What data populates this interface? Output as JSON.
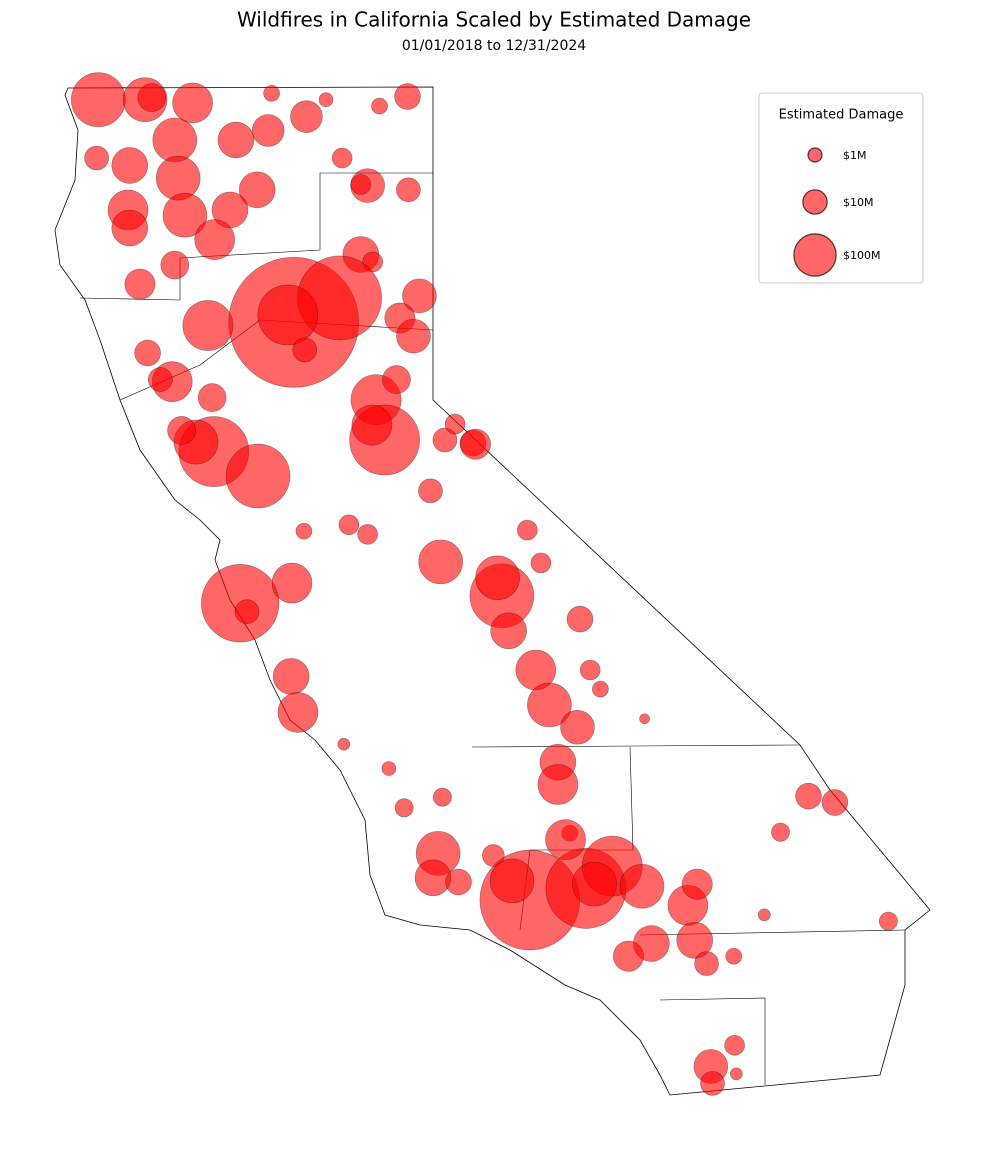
{
  "chart_data": {
    "type": "bubble_map",
    "title": "Wildfires in California Scaled by Estimated Damage",
    "subtitle": "01/01/2018 to 12/31/2024",
    "legend_title": "Estimated Damage",
    "legend": "upper right",
    "color": "#ff0000",
    "xlim": [
      -124.4,
      -114.1
    ],
    "ylim": [
      32.5,
      42
    ],
    "size_legend": [
      {
        "value": 1,
        "label": "$1M"
      },
      {
        "value": 10,
        "label": "$10M"
      },
      {
        "value": 100,
        "label": "$100M"
      }
    ],
    "x": [
      -123.89,
      -123.34,
      -122.78,
      -123.26,
      -121.85,
      -121.44,
      -120.25,
      -120.58,
      -121.21,
      -122.27,
      -121.89,
      -122.99,
      -123.91,
      -123.52,
      -122.95,
      -122.02,
      -121.02,
      -120.72,
      -120.24,
      -120.8,
      -123.54,
      -122.87,
      -122.34,
      -122.52,
      -123.52,
      -123.4,
      -122.99,
      -120.8,
      -120.66,
      -121.59,
      -121.05,
      -121.66,
      -120.11,
      -120.34,
      -120.18,
      -122.6,
      -123.31,
      -123.02,
      -123.16,
      -121.46,
      -120.62,
      -120.38,
      -120.52,
      -120.67,
      -122.53,
      -122.01,
      -122.74,
      -122.55,
      -122.91,
      -119.81,
      -119.48,
      -119.69,
      -119.98,
      -119.86,
      -119.14,
      -119.19,
      -119.06,
      -122.22,
      -121.61,
      -122.14,
      -120.72,
      -118.84,
      -118.68,
      -118.22,
      -121.62,
      -121.54,
      -118.74,
      -118.58,
      -118.25,
      -118.48,
      -118.48,
      -117.98,
      -117.46,
      -118.1,
      -119.89,
      -119.95,
      -119.65,
      -119.24,
      -118.34,
      -119.84,
      -120.29,
      -120.47,
      -118.81,
      -119.02,
      -118.15,
      -117.84,
      -118.39,
      -117.49,
      -118.05,
      -116.95,
      -116.84,
      -117.38,
      -117.65,
      -116.87,
      -116.73,
      -116.41,
      -116.05,
      -115.53,
      -115.22,
      -115.86,
      -114.59,
      -116.68,
      -116.66,
      -116.4,
      -116.38,
      -121.0,
      -119.45,
      -120.94,
      -121.47
    ],
    "y": [
      41.88,
      41.88,
      41.85,
      41.9,
      41.94,
      41.72,
      41.91,
      41.82,
      41.88,
      41.5,
      41.59,
      41.5,
      41.33,
      41.26,
      41.14,
      41.03,
      41.33,
      41.07,
      41.03,
      41.08,
      40.84,
      40.79,
      40.84,
      40.56,
      40.67,
      40.14,
      40.32,
      40.42,
      40.35,
      39.78,
      40.01,
      39.85,
      40.03,
      39.82,
      39.65,
      39.75,
      39.49,
      39.22,
      39.24,
      39.52,
      39.05,
      39.24,
      38.67,
      38.81,
      38.56,
      38.33,
      38.65,
      39.07,
      38.76,
      38.67,
      38.64,
      38.82,
      38.19,
      37.52,
      37.2,
      37.37,
      36.87,
      37.13,
      37.32,
      37.05,
      37.78,
      37.82,
      37.51,
      36.98,
      36.44,
      36.1,
      36.5,
      36.17,
      35.96,
      35.63,
      35.42,
      36.32,
      36.04,
      36.5,
      34.77,
      34.54,
      34.5,
      34.75,
      34.96,
      35.3,
      35.2,
      35.57,
      34.33,
      34.51,
      34.44,
      34.65,
      34.9,
      34.46,
      34.48,
      34.28,
      34.48,
      33.92,
      33.8,
      33.95,
      33.73,
      33.8,
      34.19,
      35.31,
      35.25,
      34.97,
      34.13,
      32.76,
      32.6,
      32.96,
      32.69,
      35.8,
      38.63,
      37.87,
      37.81
    ],
    "sizes": [
      280,
      118,
      80,
      18,
      1.75,
      31,
      13,
      1.75,
      1,
      51,
      31,
      118,
      9.5,
      51,
      118,
      51,
      4.4,
      40,
      9.5,
      4.4,
      80,
      118,
      51,
      80,
      51,
      25,
      18,
      51,
      4.4,
      10800,
      1750,
      430,
      40,
      25,
      40,
      204,
      13,
      80,
      9.5,
      9.5,
      204,
      18,
      820,
      80,
      820,
      560,
      118,
      18,
      18,
      9.5,
      13,
      4.4,
      9.5,
      118,
      560,
      118,
      51,
      1260,
      80,
      9.5,
      4.4,
      4.4,
      4.4,
      13,
      51,
      80,
      80,
      118,
      40,
      51,
      80,
      1.75,
      0.25,
      4.4,
      118,
      51,
      13,
      6.5,
      1.75,
      3,
      3,
      1,
      3600,
      118,
      1440,
      430,
      80,
      118,
      118,
      80,
      25,
      51,
      25,
      51,
      9.5,
      1.75,
      0.53,
      13,
      13,
      3,
      3,
      40,
      9.5,
      4.4,
      0.53,
      0.53,
      25,
      4.4,
      1.75
    ]
  }
}
